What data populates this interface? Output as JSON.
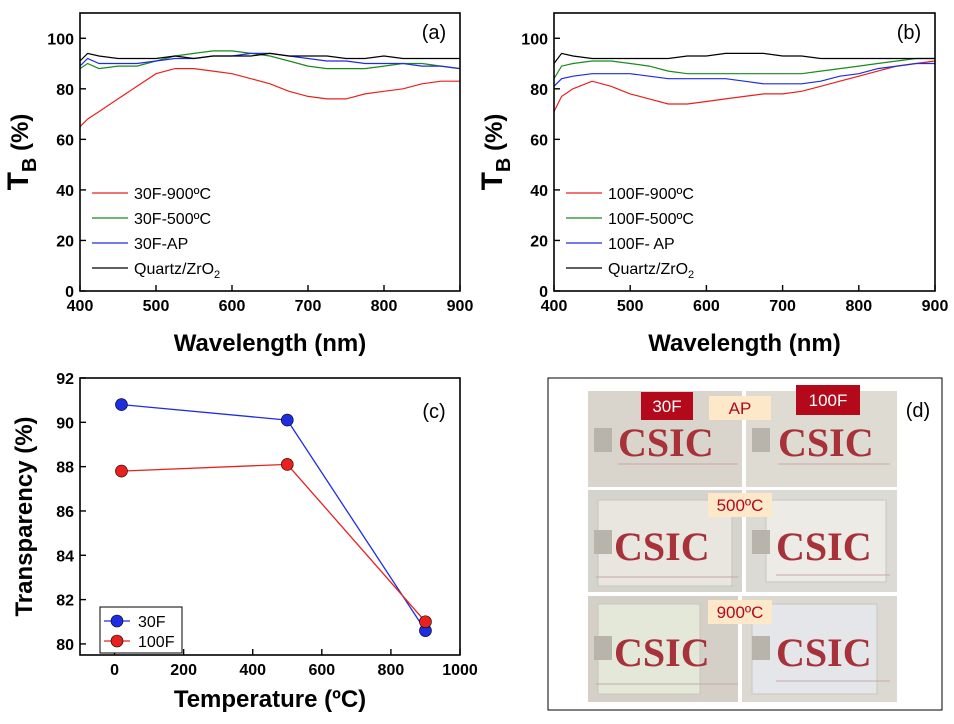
{
  "chart_data": [
    {
      "id": "a",
      "type": "line",
      "panel_label": "(a)",
      "xlabel": "Wavelength (nm)",
      "ylabel_main": "T",
      "ylabel_sub": "B",
      "ylabel_unit": "(%)",
      "xlim": [
        400,
        900
      ],
      "ylim": [
        0,
        110
      ],
      "xticks": [
        400,
        500,
        600,
        700,
        800,
        900
      ],
      "yticks": [
        0,
        20,
        40,
        60,
        80,
        100
      ],
      "legend_position": "bottom-left",
      "series": [
        {
          "name": "30F-900ºC",
          "name_sub": "",
          "color": "#e8211e",
          "x": [
            400,
            410,
            425,
            450,
            475,
            500,
            525,
            550,
            575,
            600,
            625,
            650,
            675,
            700,
            725,
            750,
            775,
            800,
            825,
            850,
            875,
            900
          ],
          "y": [
            65,
            68,
            71,
            76,
            81,
            86,
            88,
            88,
            87,
            86,
            84,
            82,
            79,
            77,
            76,
            76,
            78,
            79,
            80,
            82,
            83,
            83
          ]
        },
        {
          "name": "30F-500ºC",
          "name_sub": "",
          "color": "#1b8a1b",
          "x": [
            400,
            410,
            425,
            450,
            475,
            500,
            525,
            550,
            575,
            600,
            625,
            650,
            675,
            700,
            725,
            750,
            775,
            800,
            825,
            850,
            875,
            900
          ],
          "y": [
            88,
            90,
            88,
            89,
            89,
            91,
            93,
            94,
            95,
            95,
            94,
            93,
            91,
            89,
            88,
            88,
            88,
            89,
            90,
            90,
            89,
            88
          ]
        },
        {
          "name": "30F-AP",
          "name_sub": "",
          "color": "#1f2de0",
          "x": [
            400,
            410,
            425,
            450,
            475,
            500,
            525,
            550,
            575,
            600,
            625,
            650,
            675,
            700,
            725,
            750,
            775,
            800,
            825,
            850,
            875,
            900
          ],
          "y": [
            89,
            92,
            90,
            90,
            90,
            91,
            92,
            92,
            93,
            93,
            94,
            94,
            93,
            92,
            91,
            91,
            90,
            90,
            90,
            89,
            89,
            88
          ]
        },
        {
          "name": "Quartz/ZrO",
          "name_sub": "2",
          "color": "#000000",
          "x": [
            400,
            410,
            425,
            450,
            475,
            500,
            525,
            550,
            575,
            600,
            625,
            650,
            675,
            700,
            725,
            750,
            775,
            800,
            825,
            850,
            875,
            900
          ],
          "y": [
            91,
            94,
            93,
            92,
            92,
            92,
            93,
            92,
            93,
            93,
            93,
            94,
            93,
            93,
            93,
            92,
            92,
            93,
            92,
            92,
            92,
            92
          ]
        }
      ]
    },
    {
      "id": "b",
      "type": "line",
      "panel_label": "(b)",
      "xlabel": "Wavelength (nm)",
      "ylabel_main": "T",
      "ylabel_sub": "B",
      "ylabel_unit": "(%)",
      "xlim": [
        400,
        900
      ],
      "ylim": [
        0,
        110
      ],
      "xticks": [
        400,
        500,
        600,
        700,
        800,
        900
      ],
      "yticks": [
        0,
        20,
        40,
        60,
        80,
        100
      ],
      "legend_position": "bottom-left",
      "series": [
        {
          "name": "100F-900ºC",
          "name_sub": "",
          "color": "#e8211e",
          "x": [
            400,
            410,
            425,
            450,
            475,
            500,
            525,
            550,
            575,
            600,
            625,
            650,
            675,
            700,
            725,
            750,
            775,
            800,
            825,
            850,
            875,
            900
          ],
          "y": [
            71,
            77,
            80,
            83,
            81,
            78,
            76,
            74,
            74,
            75,
            76,
            77,
            78,
            78,
            79,
            81,
            83,
            85,
            87,
            89,
            90,
            91
          ]
        },
        {
          "name": "100F-500ºC",
          "name_sub": "",
          "color": "#1b8a1b",
          "x": [
            400,
            410,
            425,
            450,
            475,
            500,
            525,
            550,
            575,
            600,
            625,
            650,
            675,
            700,
            725,
            750,
            775,
            800,
            825,
            850,
            875,
            900
          ],
          "y": [
            84,
            89,
            90,
            91,
            91,
            90,
            89,
            87,
            86,
            86,
            86,
            86,
            86,
            86,
            86,
            87,
            88,
            89,
            90,
            91,
            92,
            92
          ]
        },
        {
          "name": "100F- AP",
          "name_sub": "",
          "color": "#1f2de0",
          "x": [
            400,
            410,
            425,
            450,
            475,
            500,
            525,
            550,
            575,
            600,
            625,
            650,
            675,
            700,
            725,
            750,
            775,
            800,
            825,
            850,
            875,
            900
          ],
          "y": [
            81,
            84,
            85,
            86,
            86,
            86,
            85,
            84,
            84,
            84,
            84,
            83,
            82,
            82,
            82,
            83,
            85,
            86,
            88,
            89,
            90,
            90
          ]
        },
        {
          "name": "Quartz/ZrO",
          "name_sub": "2",
          "color": "#000000",
          "x": [
            400,
            410,
            425,
            450,
            475,
            500,
            525,
            550,
            575,
            600,
            625,
            650,
            675,
            700,
            725,
            750,
            775,
            800,
            825,
            850,
            875,
            900
          ],
          "y": [
            90,
            94,
            93,
            92,
            92,
            92,
            92,
            92,
            93,
            93,
            94,
            94,
            94,
            93,
            93,
            92,
            92,
            92,
            92,
            92,
            92,
            92
          ]
        }
      ]
    },
    {
      "id": "c",
      "type": "line",
      "panel_label": "(c)",
      "xlabel": "Temperature (ºC)",
      "ylabel": "Transparency (%)",
      "xlim": [
        -100,
        1000
      ],
      "ylim": [
        79.5,
        92
      ],
      "xticks": [
        0,
        200,
        400,
        600,
        800,
        1000
      ],
      "yticks": [
        80,
        82,
        84,
        86,
        88,
        90,
        92
      ],
      "legend_position": "bottom-left",
      "series": [
        {
          "name": "30F",
          "color": "#1f2de0",
          "x": [
            20,
            500,
            900
          ],
          "y": [
            90.8,
            90.1,
            80.6
          ]
        },
        {
          "name": "100F",
          "color": "#e8211e",
          "x": [
            20,
            500,
            900
          ],
          "y": [
            87.8,
            88.1,
            81.0
          ]
        }
      ]
    }
  ],
  "photo_panel": {
    "panel_label": "(d)",
    "labels": {
      "col_30f": "30F",
      "col_100f": "100F",
      "row_ap": "AP",
      "row_500": "500ºC",
      "row_900": "900ºC"
    },
    "logo_text": "CSIC",
    "tag_red_color": "#b3091a",
    "tag_cream_color": "#fde9c9"
  }
}
